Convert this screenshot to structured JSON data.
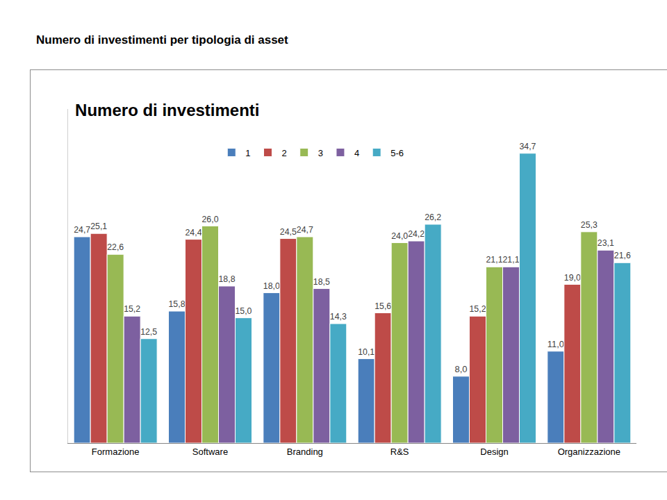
{
  "heading": "Numero di investimenti per tipologia di asset",
  "chart_data": {
    "type": "bar",
    "title": "Numero di investimenti",
    "categories": [
      "Formazione",
      "Software",
      "Branding",
      "R&S",
      "Design",
      "Organizzazione"
    ],
    "series": [
      {
        "name": "1",
        "color": "#4a7ebb",
        "values": [
          24.7,
          15.8,
          18.0,
          10.1,
          8.0,
          11.0
        ],
        "value_labels": [
          "24,7",
          "15,8",
          "18,0",
          "10,1",
          "8,0",
          "11,0"
        ]
      },
      {
        "name": "2",
        "color": "#be4b48",
        "values": [
          25.1,
          24.4,
          24.5,
          15.6,
          15.2,
          19.0
        ],
        "value_labels": [
          "25,1",
          "24,4",
          "24,5",
          "15,6",
          "15,2",
          "19,0"
        ]
      },
      {
        "name": "3",
        "color": "#98b954",
        "values": [
          22.6,
          26.0,
          24.7,
          24.0,
          21.1,
          25.3
        ],
        "value_labels": [
          "22,6",
          "26,0",
          "24,7",
          "24,0",
          "21,1",
          "25,3"
        ]
      },
      {
        "name": "4",
        "color": "#7d60a0",
        "values": [
          15.2,
          18.8,
          18.5,
          24.2,
          21.1,
          23.1
        ],
        "value_labels": [
          "15,2",
          "18,8",
          "18,5",
          "24,2",
          "21,1",
          "23,1"
        ]
      },
      {
        "name": "5-6",
        "color": "#46aac5",
        "values": [
          12.5,
          15.0,
          14.3,
          26.2,
          34.7,
          21.6
        ],
        "value_labels": [
          "12,5",
          "15,0",
          "14,3",
          "26,2",
          "34,7",
          "21,6"
        ]
      }
    ],
    "ylim": [
      0,
      40
    ],
    "grid": false,
    "legend": "top",
    "data_labels": true,
    "tick_labels": "x"
  }
}
